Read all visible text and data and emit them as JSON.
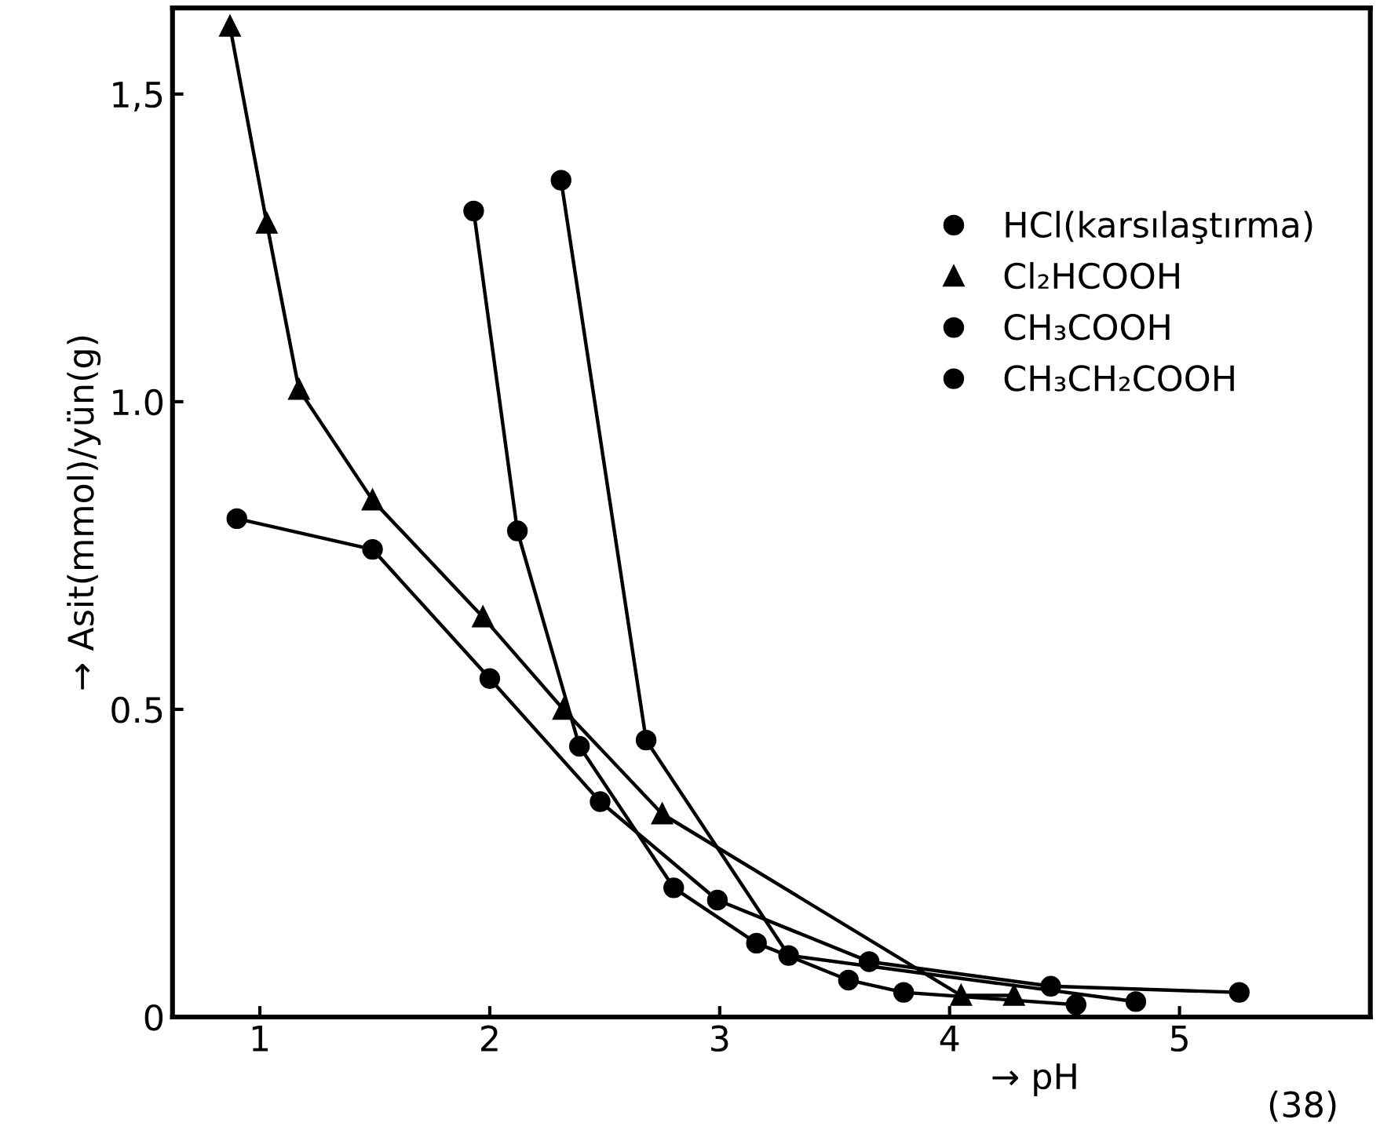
{
  "chart_data": {
    "type": "line",
    "xlabel": "→ pH",
    "ylabel": "→ Asit(mmol)/yün(g)",
    "xlim": [
      0.62,
      5.83
    ],
    "ylim": [
      0,
      1.64
    ],
    "xticks": [
      1,
      2,
      3,
      4,
      5
    ],
    "yticks": [
      0,
      {
        "value": 0.5,
        "label": "0.5"
      },
      {
        "value": 1.0,
        "label": "1.0"
      },
      {
        "value": 1.5,
        "label": "1,5"
      }
    ],
    "grid": false,
    "legend": "top right",
    "line_style": "solid",
    "annotations": [
      "(38)"
    ],
    "series": [
      {
        "name": "HCl(karsılaştırma)",
        "color": "#000000",
        "marker": "circle",
        "x": [
          0.9,
          1.49,
          2.0,
          2.48,
          2.99,
          3.65,
          4.44,
          5.26
        ],
        "values": [
          0.81,
          0.76,
          0.55,
          0.35,
          0.19,
          0.09,
          0.05,
          0.04
        ]
      },
      {
        "name": "Cl₂HCOOH",
        "color": "#000000",
        "marker": "triangle",
        "x": [
          0.87,
          1.03,
          1.17,
          1.49,
          1.97,
          2.32,
          2.75,
          4.05,
          4.28
        ],
        "values": [
          1.61,
          1.29,
          1.02,
          0.84,
          0.65,
          0.5,
          0.33,
          0.035,
          0.035
        ]
      },
      {
        "name": "CH₃COOH",
        "color": "#000000",
        "marker": "circle",
        "x": [
          1.93,
          2.12,
          2.39,
          2.8,
          3.16,
          3.56,
          3.8,
          4.55
        ],
        "values": [
          1.31,
          0.79,
          0.44,
          0.21,
          0.12,
          0.06,
          0.04,
          0.02
        ]
      },
      {
        "name": "CH₃CH₂COOH",
        "color": "#000000",
        "marker": "circle",
        "x": [
          2.31,
          2.68,
          3.3,
          4.81
        ],
        "values": [
          1.36,
          0.45,
          0.1,
          0.025
        ]
      }
    ]
  }
}
